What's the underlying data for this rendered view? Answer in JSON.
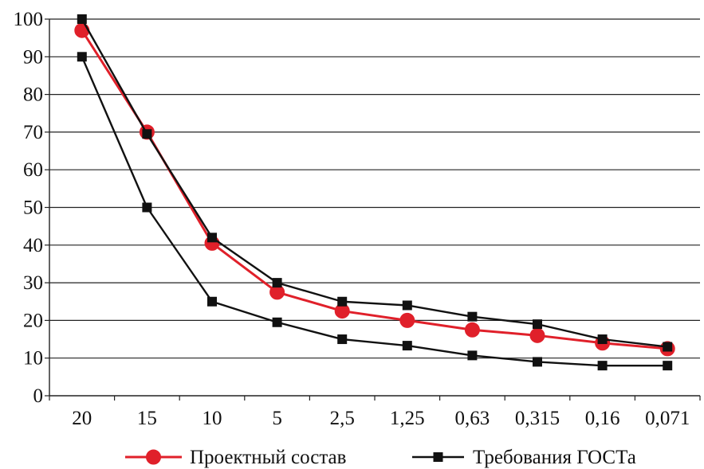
{
  "chart_data": {
    "type": "line",
    "title": "",
    "xlabel": "",
    "ylabel": "",
    "categories": [
      "20",
      "15",
      "10",
      "5",
      "2,5",
      "1,25",
      "0,63",
      "0,315",
      "0,16",
      "0,071"
    ],
    "y_ticks": [
      "0",
      "10",
      "20",
      "30",
      "40",
      "50",
      "60",
      "70",
      "80",
      "90",
      "100"
    ],
    "ylim": [
      0,
      100
    ],
    "grid": "horizontal",
    "legend_position": "bottom",
    "series": [
      {
        "name": "Проектный состав",
        "color": "#e0202a",
        "marker": "circle",
        "values": [
          97,
          70,
          40.5,
          27.5,
          22.5,
          20,
          17.5,
          16,
          14,
          12.5
        ]
      },
      {
        "name": "Требования ГОСТа",
        "color": "#111111",
        "marker": "square",
        "values": [
          100,
          69.5,
          42,
          30,
          25,
          24,
          21,
          19,
          15,
          13
        ]
      },
      {
        "name": "",
        "color": "#111111",
        "marker": "square",
        "values": [
          90,
          50,
          25,
          19.5,
          15,
          13.3,
          10.7,
          9,
          8,
          8
        ]
      }
    ]
  }
}
